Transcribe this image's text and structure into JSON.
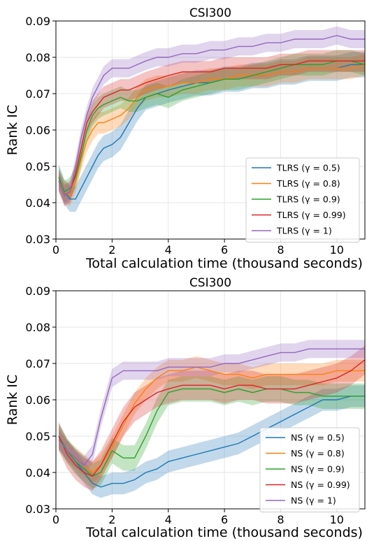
{
  "chart_data": [
    {
      "type": "line",
      "title": "CSI300",
      "xlabel": "Total calculation time (thousand seconds)",
      "ylabel": "Rank IC",
      "xlim": [
        0,
        11
      ],
      "ylim": [
        0.03,
        0.09
      ],
      "xticks": [
        "0",
        "2",
        "4",
        "6",
        "8",
        "10"
      ],
      "yticks": [
        "0.03",
        "0.04",
        "0.05",
        "0.06",
        "0.07",
        "0.08",
        "0.09"
      ],
      "grid": true,
      "legend": "lower-right",
      "series": [
        {
          "name": "TLRS (γ = 0.5)",
          "color": "#1f77b4",
          "x": [
            0.1,
            0.3,
            0.5,
            0.7,
            0.9,
            1.1,
            1.3,
            1.5,
            1.7,
            2.0,
            2.3,
            2.6,
            2.9,
            3.2,
            3.6,
            4.0,
            4.5,
            5.0,
            5.5,
            6.0,
            6.5,
            7.0,
            7.5,
            8.0,
            8.5,
            9.0,
            9.5,
            10.0,
            10.5,
            11.0
          ],
          "y": [
            0.047,
            0.043,
            0.041,
            0.041,
            0.044,
            0.047,
            0.05,
            0.053,
            0.055,
            0.056,
            0.058,
            0.062,
            0.066,
            0.069,
            0.07,
            0.071,
            0.072,
            0.073,
            0.073,
            0.074,
            0.074,
            0.075,
            0.075,
            0.076,
            0.076,
            0.077,
            0.077,
            0.077,
            0.078,
            0.078
          ],
          "band": 0.0035
        },
        {
          "name": "TLRS (γ = 0.8)",
          "color": "#ff7f0e",
          "x": [
            0.1,
            0.3,
            0.5,
            0.7,
            0.9,
            1.1,
            1.3,
            1.5,
            1.7,
            2.0,
            2.3,
            2.6,
            2.9,
            3.2,
            3.6,
            4.0,
            4.5,
            5.0,
            5.5,
            6.0,
            6.5,
            7.0,
            7.5,
            8.0,
            8.5,
            9.0,
            9.5,
            10.0,
            10.5,
            11.0
          ],
          "y": [
            0.046,
            0.043,
            0.042,
            0.046,
            0.052,
            0.057,
            0.06,
            0.062,
            0.062,
            0.063,
            0.064,
            0.066,
            0.069,
            0.071,
            0.072,
            0.072,
            0.073,
            0.073,
            0.074,
            0.074,
            0.075,
            0.075,
            0.075,
            0.076,
            0.076,
            0.077,
            0.077,
            0.077,
            0.077,
            0.078
          ],
          "band": 0.003
        },
        {
          "name": "TLRS (γ = 0.9)",
          "color": "#2ca02c",
          "x": [
            0.1,
            0.3,
            0.5,
            0.7,
            0.9,
            1.1,
            1.3,
            1.5,
            1.7,
            2.0,
            2.3,
            2.6,
            2.9,
            3.2,
            3.6,
            4.0,
            4.5,
            5.0,
            5.5,
            6.0,
            6.5,
            7.0,
            7.5,
            8.0,
            8.5,
            9.0,
            9.5,
            10.0,
            10.5,
            11.0
          ],
          "y": [
            0.047,
            0.043,
            0.044,
            0.047,
            0.053,
            0.06,
            0.064,
            0.066,
            0.067,
            0.068,
            0.069,
            0.068,
            0.068,
            0.069,
            0.07,
            0.069,
            0.071,
            0.072,
            0.073,
            0.074,
            0.074,
            0.075,
            0.076,
            0.077,
            0.078,
            0.078,
            0.078,
            0.079,
            0.079,
            0.078
          ],
          "band": 0.003
        },
        {
          "name": "TLRS (γ = 0.99)",
          "color": "#d62728",
          "x": [
            0.1,
            0.3,
            0.5,
            0.7,
            0.9,
            1.1,
            1.3,
            1.5,
            1.7,
            2.0,
            2.3,
            2.6,
            2.9,
            3.2,
            3.6,
            4.0,
            4.5,
            5.0,
            5.5,
            6.0,
            6.5,
            7.0,
            7.5,
            8.0,
            8.5,
            9.0,
            9.5,
            10.0,
            10.5,
            11.0
          ],
          "y": [
            0.046,
            0.042,
            0.043,
            0.048,
            0.055,
            0.062,
            0.065,
            0.067,
            0.069,
            0.07,
            0.071,
            0.071,
            0.072,
            0.073,
            0.074,
            0.075,
            0.076,
            0.076,
            0.076,
            0.077,
            0.077,
            0.077,
            0.077,
            0.078,
            0.078,
            0.079,
            0.079,
            0.079,
            0.079,
            0.079
          ],
          "band": 0.003
        },
        {
          "name": "TLRS (γ = 1)",
          "color": "#9467bd",
          "x": [
            0.1,
            0.3,
            0.5,
            0.7,
            0.9,
            1.1,
            1.3,
            1.5,
            1.7,
            2.0,
            2.3,
            2.6,
            2.9,
            3.2,
            3.6,
            4.0,
            4.5,
            5.0,
            5.5,
            6.0,
            6.5,
            7.0,
            7.5,
            8.0,
            8.5,
            9.0,
            9.5,
            10.0,
            10.5,
            11.0
          ],
          "y": [
            0.046,
            0.042,
            0.043,
            0.05,
            0.058,
            0.064,
            0.069,
            0.072,
            0.075,
            0.077,
            0.077,
            0.077,
            0.078,
            0.079,
            0.08,
            0.08,
            0.081,
            0.081,
            0.082,
            0.082,
            0.083,
            0.083,
            0.084,
            0.084,
            0.085,
            0.085,
            0.085,
            0.086,
            0.085,
            0.085
          ],
          "band": 0.0025
        }
      ]
    },
    {
      "type": "line",
      "title": "CSI300",
      "xlabel": "Total calculation time (thousand seconds)",
      "ylabel": "Rank IC",
      "xlim": [
        0,
        11
      ],
      "ylim": [
        0.03,
        0.09
      ],
      "xticks": [
        "0",
        "2",
        "4",
        "6",
        "8",
        "10"
      ],
      "yticks": [
        "0.03",
        "0.04",
        "0.05",
        "0.06",
        "0.07",
        "0.08",
        "0.09"
      ],
      "grid": true,
      "legend": "lower-right",
      "series": [
        {
          "name": "NS (γ = 0.5)",
          "color": "#1f77b4",
          "x": [
            0.1,
            0.4,
            0.7,
            1.0,
            1.3,
            1.6,
            2.0,
            2.4,
            2.8,
            3.2,
            3.6,
            4.0,
            4.5,
            5.0,
            5.5,
            6.0,
            6.5,
            7.0,
            7.5,
            8.0,
            8.5,
            9.0,
            9.5,
            10.0,
            10.5,
            11.0
          ],
          "y": [
            0.05,
            0.046,
            0.043,
            0.04,
            0.037,
            0.036,
            0.037,
            0.037,
            0.038,
            0.04,
            0.041,
            0.043,
            0.044,
            0.045,
            0.046,
            0.047,
            0.048,
            0.05,
            0.052,
            0.054,
            0.056,
            0.058,
            0.06,
            0.06,
            0.061,
            0.061
          ],
          "band": 0.003
        },
        {
          "name": "NS (γ = 0.8)",
          "color": "#ff7f0e",
          "x": [
            0.1,
            0.4,
            0.7,
            1.0,
            1.3,
            1.6,
            2.0,
            2.4,
            2.8,
            3.2,
            3.6,
            4.0,
            4.5,
            5.0,
            5.5,
            6.0,
            6.5,
            7.0,
            7.5,
            8.0,
            8.5,
            9.0,
            9.5,
            10.0,
            10.5,
            11.0
          ],
          "y": [
            0.049,
            0.046,
            0.044,
            0.042,
            0.04,
            0.042,
            0.047,
            0.053,
            0.059,
            0.063,
            0.066,
            0.068,
            0.068,
            0.069,
            0.068,
            0.067,
            0.067,
            0.066,
            0.067,
            0.067,
            0.067,
            0.067,
            0.067,
            0.068,
            0.068,
            0.068
          ],
          "band": 0.003
        },
        {
          "name": "NS (γ = 0.9)",
          "color": "#2ca02c",
          "x": [
            0.1,
            0.4,
            0.7,
            1.0,
            1.3,
            1.6,
            2.0,
            2.4,
            2.8,
            3.2,
            3.6,
            4.0,
            4.5,
            5.0,
            5.5,
            6.0,
            6.5,
            7.0,
            7.5,
            8.0,
            8.5,
            9.0,
            9.5,
            10.0,
            10.5,
            11.0
          ],
          "y": [
            0.05,
            0.046,
            0.043,
            0.041,
            0.039,
            0.04,
            0.046,
            0.044,
            0.044,
            0.05,
            0.057,
            0.062,
            0.063,
            0.063,
            0.063,
            0.062,
            0.063,
            0.062,
            0.063,
            0.063,
            0.062,
            0.062,
            0.061,
            0.061,
            0.061,
            0.061
          ],
          "band": 0.0035
        },
        {
          "name": "NS (γ = 0.99)",
          "color": "#d62728",
          "x": [
            0.1,
            0.4,
            0.7,
            1.0,
            1.3,
            1.6,
            2.0,
            2.4,
            2.8,
            3.2,
            3.6,
            4.0,
            4.5,
            5.0,
            5.5,
            6.0,
            6.5,
            7.0,
            7.5,
            8.0,
            8.5,
            9.0,
            9.5,
            10.0,
            10.5,
            11.0
          ],
          "y": [
            0.05,
            0.045,
            0.042,
            0.04,
            0.039,
            0.042,
            0.048,
            0.054,
            0.058,
            0.06,
            0.062,
            0.063,
            0.064,
            0.064,
            0.064,
            0.063,
            0.064,
            0.064,
            0.063,
            0.063,
            0.063,
            0.064,
            0.065,
            0.066,
            0.068,
            0.071
          ],
          "band": 0.004
        },
        {
          "name": "NS (γ = 1)",
          "color": "#9467bd",
          "x": [
            0.1,
            0.4,
            0.7,
            1.0,
            1.3,
            1.6,
            2.0,
            2.4,
            2.8,
            3.2,
            3.6,
            4.0,
            4.5,
            5.0,
            5.5,
            6.0,
            6.5,
            7.0,
            7.5,
            8.0,
            8.5,
            9.0,
            9.5,
            10.0,
            10.5,
            11.0
          ],
          "y": [
            0.049,
            0.046,
            0.044,
            0.042,
            0.045,
            0.055,
            0.066,
            0.068,
            0.068,
            0.068,
            0.068,
            0.069,
            0.069,
            0.069,
            0.069,
            0.07,
            0.07,
            0.071,
            0.072,
            0.073,
            0.073,
            0.074,
            0.074,
            0.074,
            0.074,
            0.074
          ],
          "band": 0.0025
        }
      ]
    }
  ]
}
